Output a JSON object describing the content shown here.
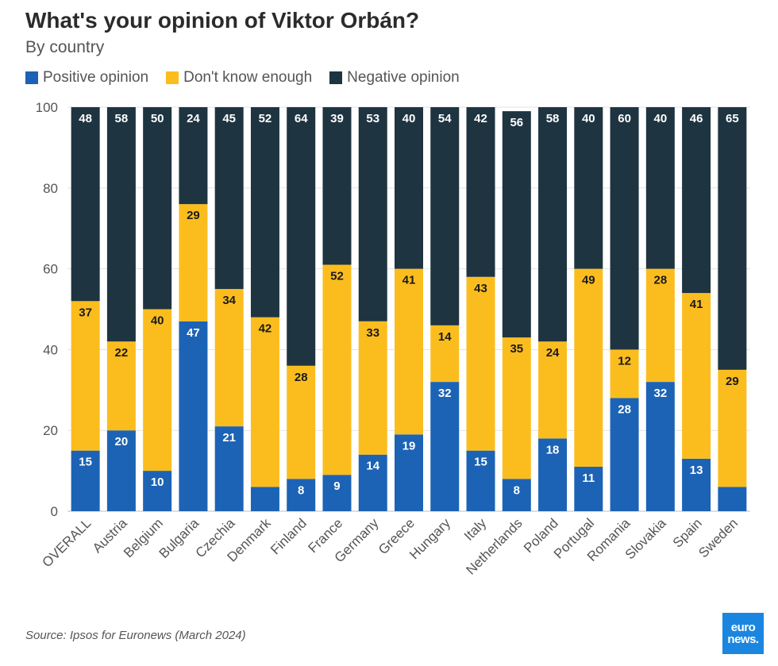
{
  "chart_data": {
    "type": "bar",
    "stacked": true,
    "title": "What's your opinion of Viktor Orbán?",
    "subtitle": "By country",
    "categories": [
      "OVERALL",
      "Austria",
      "Belgium",
      "Bulgaria",
      "Czechia",
      "Denmark",
      "Finland",
      "France",
      "Germany",
      "Greece",
      "Hungary",
      "Italy",
      "Netherlands",
      "Poland",
      "Portugal",
      "Romania",
      "Slovakia",
      "Spain",
      "Sweden"
    ],
    "series": [
      {
        "name": "Positive opinion",
        "color": "#1c63b5",
        "label_color": "#ffffff",
        "values": [
          15,
          20,
          10,
          47,
          21,
          6,
          8,
          9,
          14,
          19,
          32,
          15,
          8,
          18,
          11,
          28,
          32,
          13,
          6
        ],
        "labels": [
          "15",
          "20",
          "10",
          "47",
          "21",
          "",
          "8",
          "9",
          "14",
          "19",
          "32",
          "15",
          "8",
          "18",
          "11",
          "28",
          "32",
          "13",
          ""
        ]
      },
      {
        "name": "Don't know enough",
        "color": "#fbbd1e",
        "label_color": "#1a1a1a",
        "values": [
          37,
          22,
          40,
          29,
          34,
          42,
          28,
          52,
          33,
          41,
          14,
          43,
          35,
          24,
          49,
          12,
          28,
          41,
          29
        ],
        "labels": [
          "37",
          "22",
          "40",
          "29",
          "34",
          "42",
          "28",
          "52",
          "33",
          "41",
          "14",
          "43",
          "35",
          "24",
          "49",
          "12",
          "28",
          "41",
          "29"
        ]
      },
      {
        "name": "Negative opinion",
        "color": "#1e3441",
        "label_color": "#ffffff",
        "values": [
          48,
          58,
          50,
          24,
          45,
          52,
          64,
          39,
          53,
          40,
          54,
          42,
          56,
          58,
          40,
          60,
          40,
          46,
          65
        ],
        "labels": [
          "48",
          "58",
          "50",
          "24",
          "45",
          "52",
          "64",
          "39",
          "53",
          "40",
          "54",
          "42",
          "56",
          "58",
          "40",
          "60",
          "40",
          "46",
          "65"
        ]
      }
    ],
    "ylim": [
      0,
      100
    ],
    "yticks": [
      0,
      20,
      40,
      60,
      80,
      100
    ],
    "grid": true,
    "legend": "top-left",
    "xlabel": "",
    "ylabel": ""
  },
  "source": "Source: Ipsos for Euronews (March 2024)",
  "logo": {
    "line1": "euro",
    "line2": "news."
  }
}
